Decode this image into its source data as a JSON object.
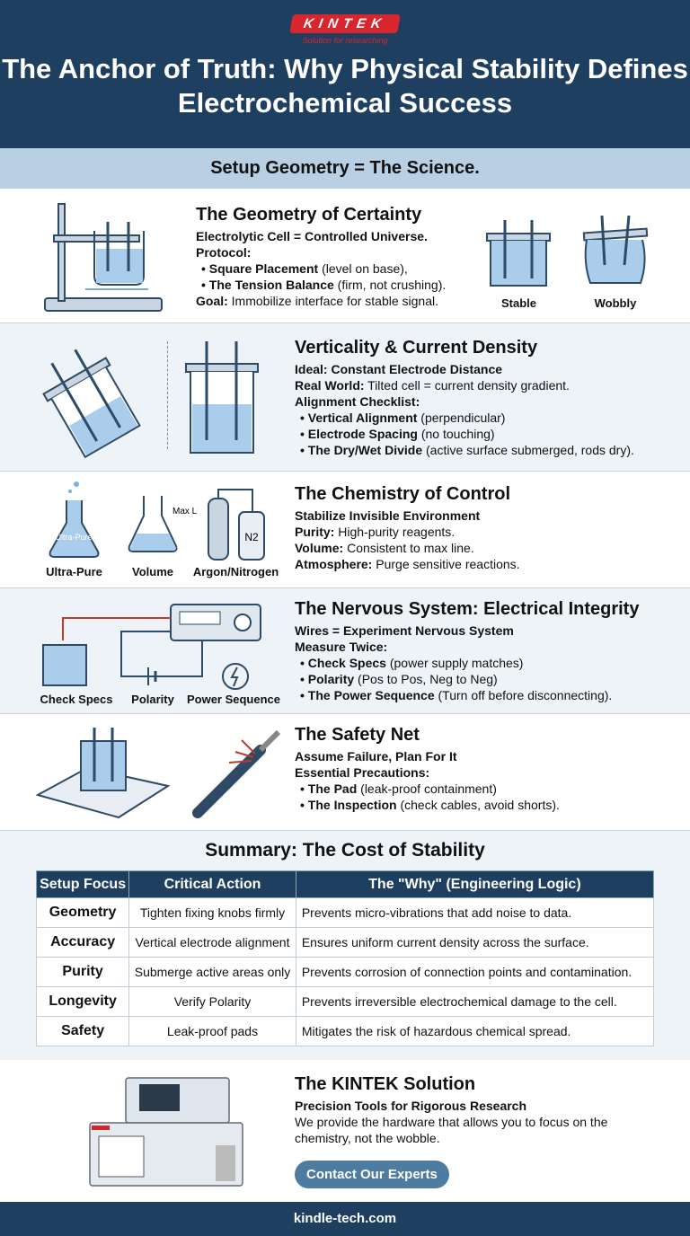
{
  "header": {
    "logo": "KINTEK",
    "tagline": "Solution for researching",
    "title": "The Anchor of Truth: Why Physical Stability Defines Electrochemical Success"
  },
  "band": "Setup Geometry = The Science.",
  "s1": {
    "title": "The Geometry of Certainty",
    "sub": "Electrolytic Cell = Controlled Universe.",
    "protocol": "Protocol:",
    "b1": "Square Placement",
    "b1r": " (level on base),",
    "b2": "The Tension Balance",
    "b2r": " (firm, not crushing).",
    "goal": "Goal:",
    "goalr": " Immobilize interface for stable signal.",
    "cap1": "Stable",
    "cap2": "Wobbly"
  },
  "s2": {
    "title": "Verticality & Current Density",
    "sub": "Ideal: Constant Electrode Distance",
    "rw": "Real World:",
    "rwr": " Tilted cell = current density gradient.",
    "check": "Alignment Checklist:",
    "b1": "Vertical Alignment",
    "b1r": " (perpendicular)",
    "b2": "Electrode Spacing",
    "b2r": " (no touching)",
    "b3": "The Dry/Wet Divide",
    "b3r": " (active surface submerged, rods dry)."
  },
  "s3": {
    "title": "The Chemistry of Control",
    "sub": "Stabilize Invisible Environment",
    "l1": "Purity:",
    "r1": " High-purity reagents.",
    "l2": "Volume:",
    "r2": " Consistent to max line.",
    "l3": "Atmosphere:",
    "r3": " Purge sensitive reactions.",
    "cap1": "Ultra-Pure",
    "cap2": "Volume",
    "cap3": "Argon/Nitrogen",
    "flask_label": "Ultra-Pure",
    "max_line": "Max Line",
    "gas": "N2"
  },
  "s4": {
    "title": "The Nervous System: Electrical Integrity",
    "sub": "Wires = Experiment Nervous System",
    "mt": "Measure Twice:",
    "b1": "Check Specs",
    "b1r": " (power supply matches)",
    "b2": "Polarity",
    "b2r": " (Pos to Pos, Neg to Neg)",
    "b3": "The Power Sequence",
    "b3r": " (Turn off before disconnecting).",
    "cap1": "Check Specs",
    "cap2": "Polarity",
    "cap3": "Power Sequence"
  },
  "s5": {
    "title": "The Safety Net",
    "sub": "Assume Failure, Plan For It",
    "ep": "Essential Precautions:",
    "b1": "The Pad",
    "b1r": " (leak-proof containment)",
    "b2": "The Inspection",
    "b2r": " (check cables, avoid shorts)."
  },
  "summary": {
    "title": "Summary: The Cost of Stability",
    "headers": [
      "Setup Focus",
      "Critical Action",
      "The \"Why\" (Engineering Logic)"
    ],
    "rows": [
      [
        "Geometry",
        "Tighten fixing knobs firmly",
        "Prevents micro-vibrations that add noise to data."
      ],
      [
        "Accuracy",
        "Vertical electrode alignment",
        "Ensures uniform current density across the surface."
      ],
      [
        "Purity",
        "Submerge active areas only",
        "Prevents corrosion of connection points and contamination."
      ],
      [
        "Longevity",
        "Verify Polarity",
        "Prevents irreversible electrochemical damage to the cell."
      ],
      [
        "Safety",
        "Leak-proof pads",
        "Mitigates the risk of hazardous chemical spread."
      ]
    ]
  },
  "kintek": {
    "title": "The KINTEK Solution",
    "sub": "Precision Tools for Rigorous Research",
    "body": "We provide the hardware that allows you to focus on the chemistry, not the wobble.",
    "cta": "Contact Our Experts"
  },
  "footer": "kindle-tech.com",
  "colors": {
    "navy": "#1e3f60",
    "band": "#b9d0e4",
    "red": "#d8262e",
    "liquid": "#a9cdea"
  }
}
